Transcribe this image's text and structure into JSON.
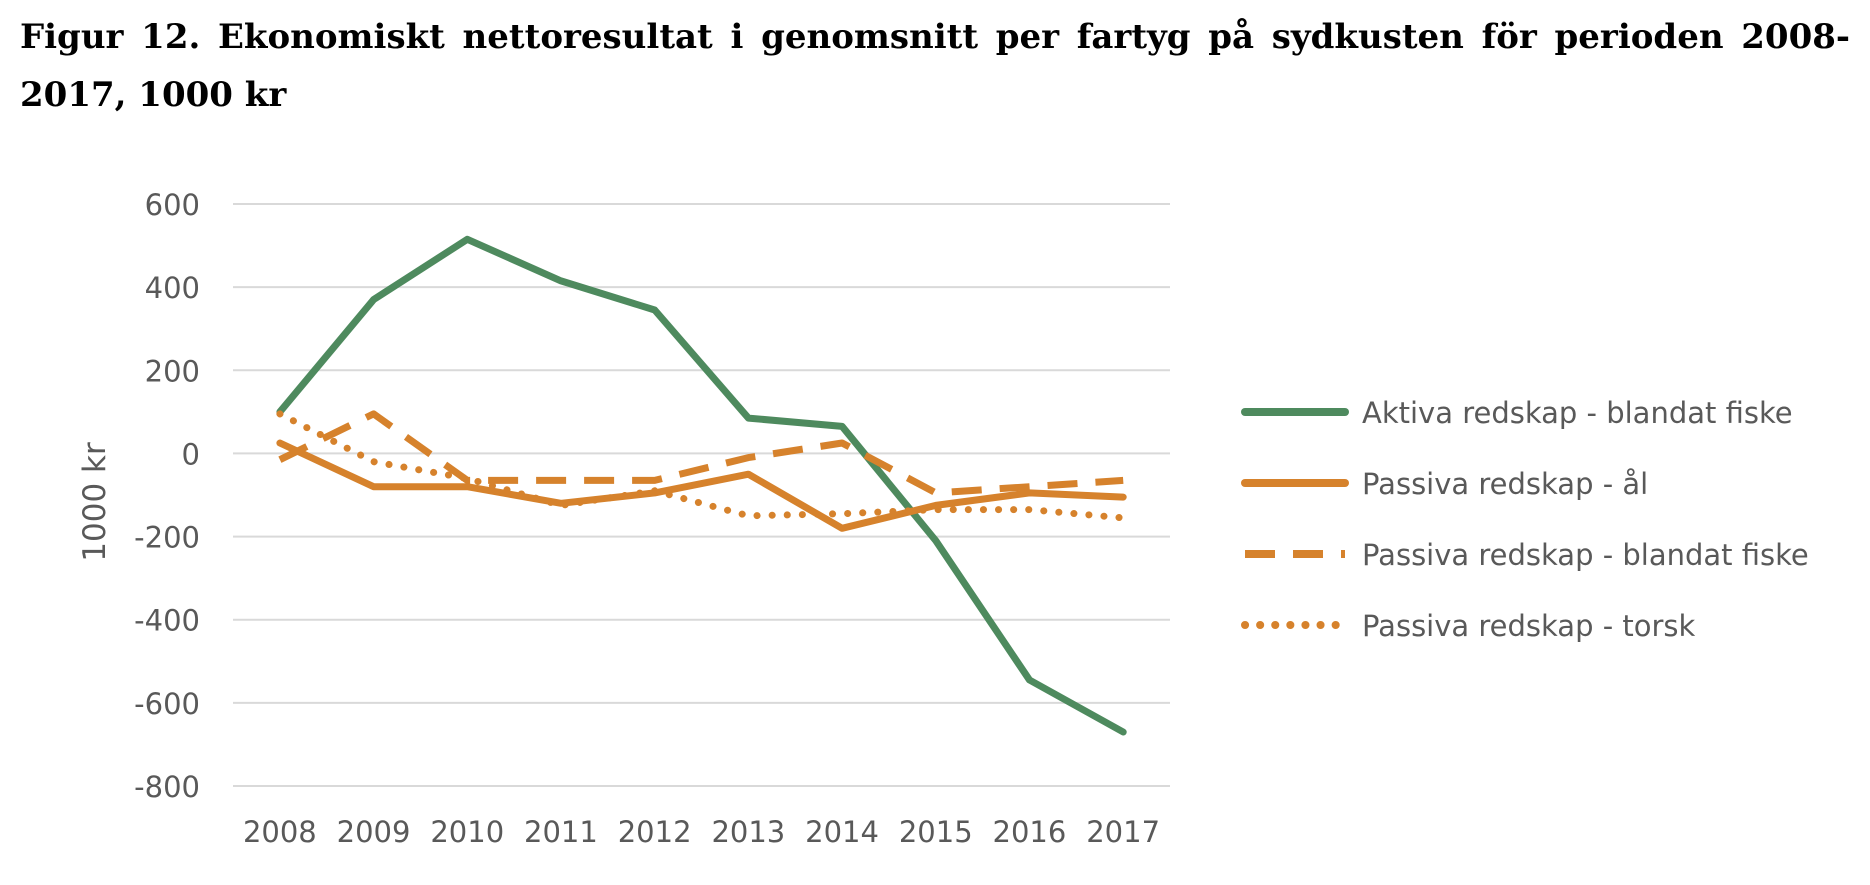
{
  "caption": "Figur 12. Ekonomiskt nettoresultat i genomsnitt per fartyg på sydkusten för perioden 2008-2017, 1000 kr",
  "chart_data": {
    "type": "line",
    "title": "",
    "xlabel": "",
    "ylabel": "1000 kr",
    "ylim": [
      -800,
      600
    ],
    "yticks": [
      "600",
      "400",
      "200",
      "0",
      "-200",
      "-400",
      "-600",
      "-800"
    ],
    "categories": [
      "2008",
      "2009",
      "2010",
      "2011",
      "2012",
      "2013",
      "2014",
      "2015",
      "2016",
      "2017"
    ],
    "grid": "horizontal",
    "legend": "right",
    "series": [
      {
        "name": "Aktiva redskap - blandat fiske",
        "color": "#4e8a5e",
        "style": "solid",
        "values": [
          100,
          370,
          515,
          415,
          345,
          85,
          65,
          -210,
          -545,
          -670
        ]
      },
      {
        "name": "Passiva redskap - ål",
        "color": "#d6822c",
        "style": "solid",
        "values": [
          25,
          -80,
          -80,
          -120,
          -95,
          -50,
          -180,
          -125,
          -95,
          -105
        ]
      },
      {
        "name": "Passiva redskap - blandat fiske",
        "color": "#d6822c",
        "style": "dashed",
        "values": [
          -15,
          95,
          -65,
          -65,
          -65,
          -10,
          25,
          -95,
          -80,
          -65
        ]
      },
      {
        "name": "Passiva redskap - torsk",
        "color": "#d6822c",
        "style": "dotted",
        "values": [
          95,
          -20,
          -60,
          -125,
          -90,
          -150,
          -145,
          -135,
          -135,
          -155
        ]
      }
    ]
  }
}
